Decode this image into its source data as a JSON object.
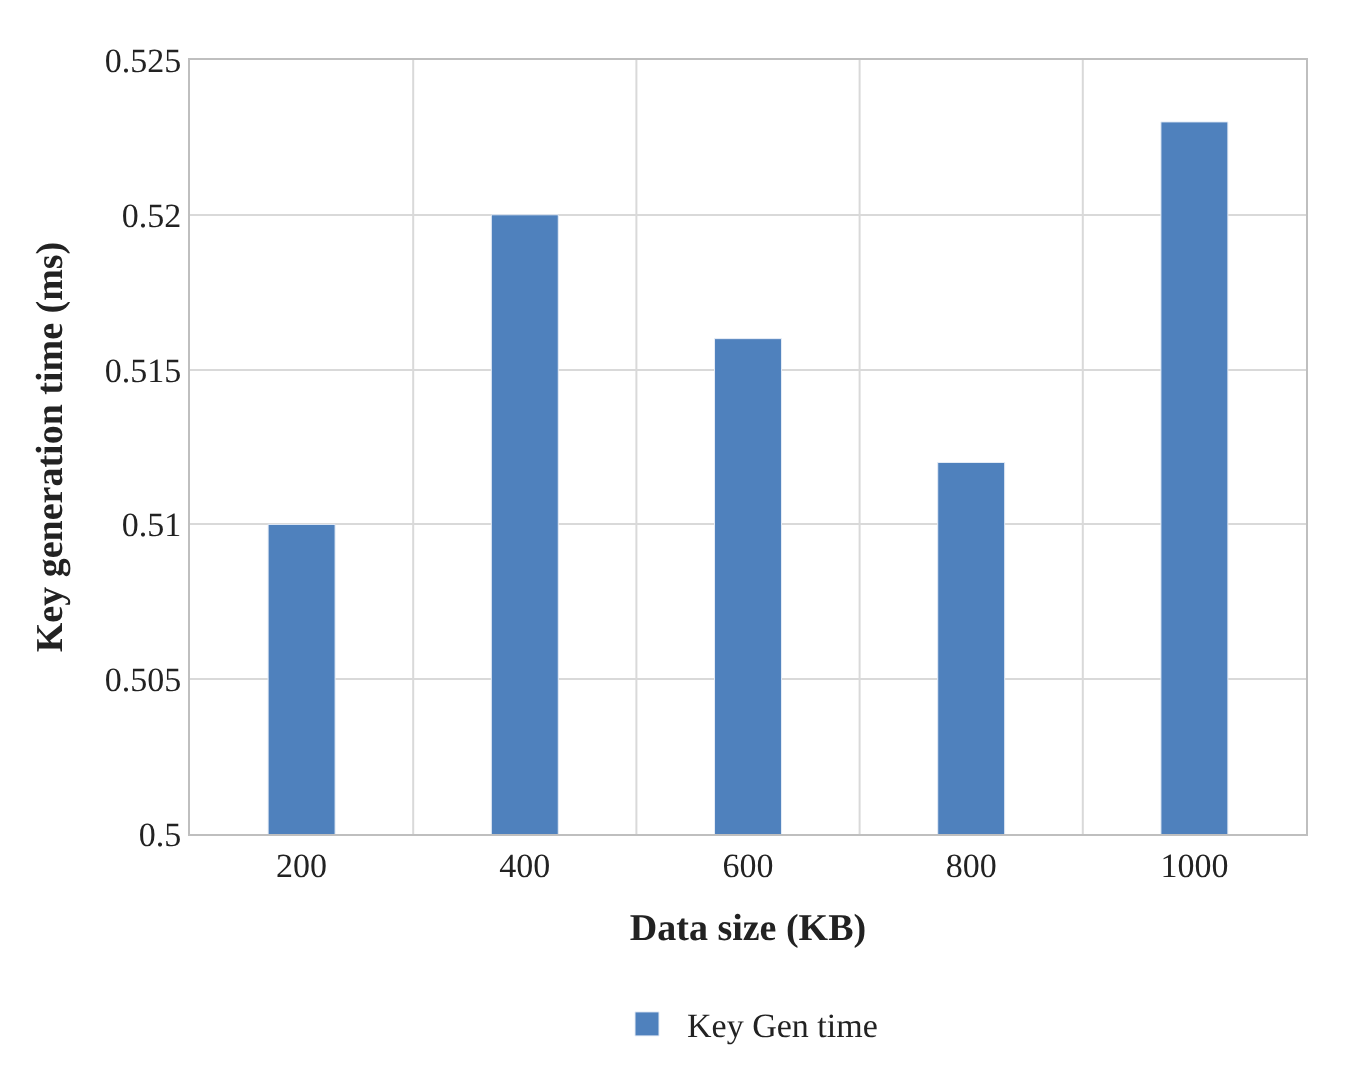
{
  "chart_data": {
    "type": "bar",
    "xlabel": "Data size (KB)",
    "ylabel": "Key generation time (ms)",
    "categories": [
      "200",
      "400",
      "600",
      "800",
      "1000"
    ],
    "series": [
      {
        "name": "Key Gen time",
        "color": "#4f81bd",
        "values": [
          0.51,
          0.52,
          0.516,
          0.512,
          0.523
        ]
      }
    ],
    "ylim": [
      0.5,
      0.525
    ],
    "yticks": [
      {
        "value": 0.5,
        "label": "0.5"
      },
      0.505,
      {
        "value": 0.51,
        "label": "0.51"
      },
      0.515,
      {
        "value": 0.52,
        "label": "0.52"
      },
      0.525
    ],
    "grid": true,
    "legend": "bottom"
  }
}
